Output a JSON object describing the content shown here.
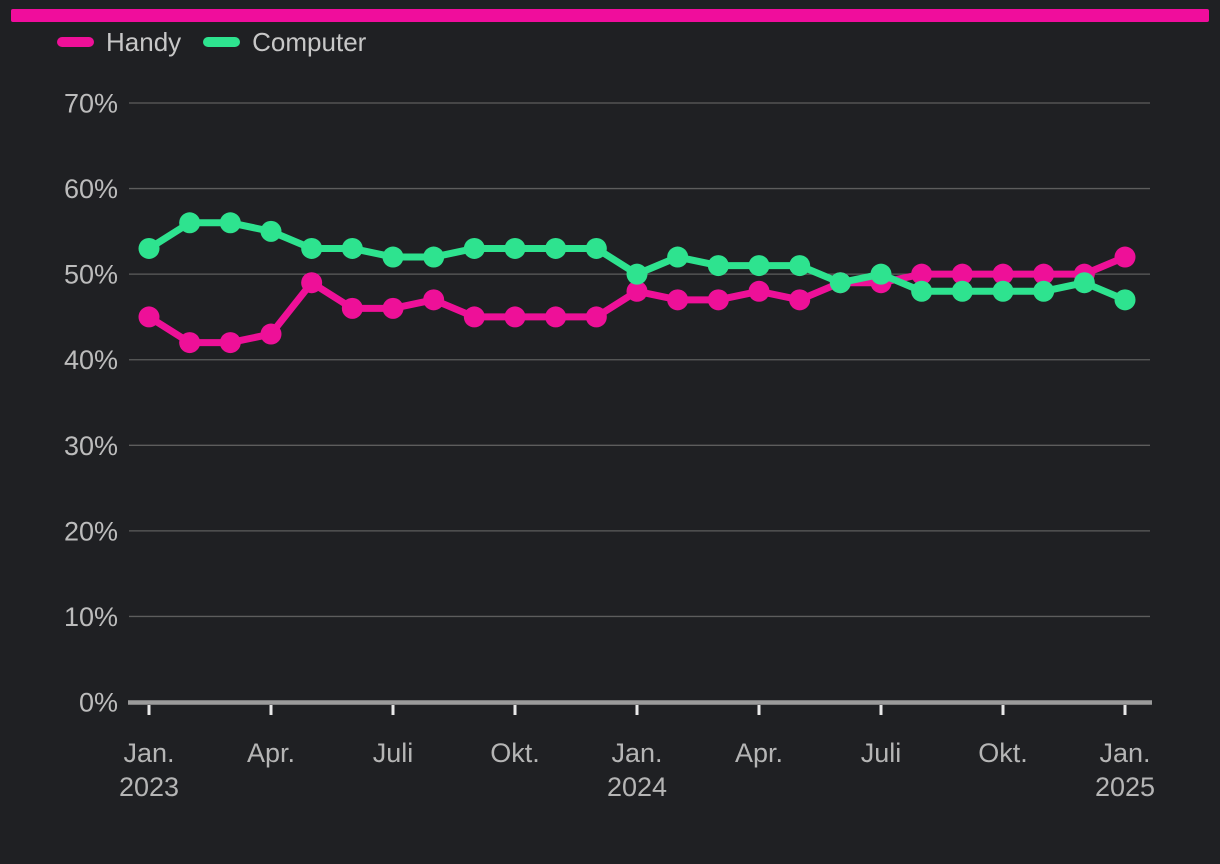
{
  "page": {
    "background_color": "#1f2023",
    "top_bar_color": "#f00d9c"
  },
  "legend": {
    "items": [
      {
        "label": "Handy",
        "color": "#ee1098"
      },
      {
        "label": "Computer",
        "color": "#2ee38f"
      }
    ]
  },
  "chart_data": {
    "type": "line",
    "title": "",
    "x_unit": "month",
    "n_points": 25,
    "x_range": [
      "Jan. 2023",
      "Jan. 2025"
    ],
    "x_ticks": [
      {
        "index": 0,
        "line1": "Jan.",
        "line2": "2023"
      },
      {
        "index": 3,
        "line1": "Apr."
      },
      {
        "index": 6,
        "line1": "Juli"
      },
      {
        "index": 9,
        "line1": "Okt."
      },
      {
        "index": 12,
        "line1": "Jan.",
        "line2": "2024"
      },
      {
        "index": 15,
        "line1": "Apr."
      },
      {
        "index": 18,
        "line1": "Juli"
      },
      {
        "index": 21,
        "line1": "Okt."
      },
      {
        "index": 24,
        "line1": "Jan.",
        "line2": "2025"
      }
    ],
    "ylim": [
      0,
      70
    ],
    "ytick_step": 10,
    "ytick_suffix": "%",
    "grid": true,
    "legend_position": "top-left",
    "series": [
      {
        "name": "Handy",
        "color": "#ee1098",
        "values": [
          45,
          42,
          42,
          43,
          49,
          46,
          46,
          47,
          45,
          45,
          45,
          45,
          48,
          47,
          47,
          48,
          47,
          49,
          49,
          50,
          50,
          50,
          50,
          50,
          52
        ]
      },
      {
        "name": "Computer",
        "color": "#2ee38f",
        "values": [
          53,
          56,
          56,
          55,
          53,
          53,
          52,
          52,
          53,
          53,
          53,
          53,
          50,
          52,
          51,
          51,
          51,
          49,
          50,
          48,
          48,
          48,
          48,
          49,
          47
        ]
      }
    ]
  }
}
